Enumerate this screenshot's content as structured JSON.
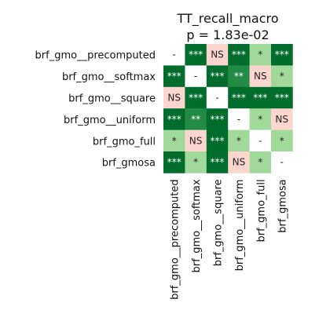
{
  "chart_data": {
    "type": "heatmap",
    "title": "TT_recall_macro",
    "subtitle": "p = 1.83e-02",
    "labels": [
      "brf_gmo__precomputed",
      "brf_gmo__softmax",
      "brf_gmo__square",
      "brf_gmo__uniform",
      "brf_gmo_full",
      "brf_gmosa"
    ],
    "cells": [
      [
        "-",
        "***",
        "NS",
        "***",
        "*",
        "***"
      ],
      [
        "***",
        "-",
        "***",
        "**",
        "NS",
        "*"
      ],
      [
        "NS",
        "***",
        "-",
        "***",
        "***",
        "***"
      ],
      [
        "***",
        "**",
        "***",
        "-",
        "*",
        "NS"
      ],
      [
        "*",
        "NS",
        "***",
        "*",
        "-",
        "*"
      ],
      [
        "***",
        "*",
        "***",
        "NS",
        "*",
        "-"
      ]
    ],
    "colors": {
      "***": "#006d2c",
      "**": "#238b45",
      "*": "#a1d99b",
      "NS": "#fcd5ce",
      "-": "#ffffff"
    },
    "text_colors": {
      "***": "#ffffff",
      "**": "#ffffff",
      "*": "#222222",
      "NS": "#222222",
      "-": "#222222"
    }
  }
}
